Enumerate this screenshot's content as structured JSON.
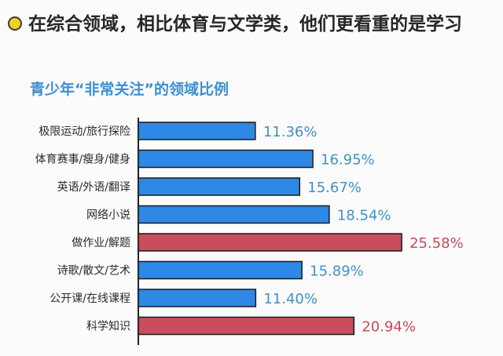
{
  "headline": "在综合领域，相比体育与文学类，他们更看重的是学习",
  "chart_data": {
    "type": "bar",
    "orientation": "horizontal",
    "title": "青少年“非常关注”的领域比例",
    "categories": [
      "极限运动/旅行探险",
      "体育赛事/瘦身/健身",
      "英语/外语/翻译",
      "网络小说",
      "做作业/解题",
      "诗歌/散文/艺术",
      "公开课/在线课程",
      "科学知识"
    ],
    "values": [
      11.36,
      16.95,
      15.67,
      18.54,
      25.58,
      15.89,
      11.4,
      20.94
    ],
    "value_labels": [
      "11.36%",
      "16.95%",
      "15.67%",
      "18.54%",
      "25.58%",
      "15.89%",
      "11.40%",
      "20.94%"
    ],
    "highlight": [
      false,
      false,
      false,
      false,
      true,
      false,
      false,
      true
    ],
    "xlim": [
      0,
      28
    ]
  },
  "colors": {
    "bar": "#2d88e6",
    "bar_highlight": "#c94d5e",
    "label": "#4191c8",
    "label_highlight": "#c64b5b",
    "bullet": "#f2d024",
    "subtitle": "#3d8fd0"
  }
}
